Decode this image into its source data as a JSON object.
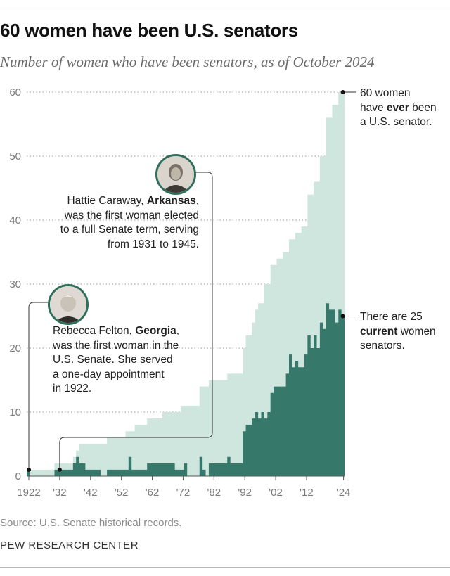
{
  "title": "60 women have been U.S. senators",
  "subtitle": "Number of women who have been senators, as of October 2024",
  "source": "Source: U.S. Senate historical records.",
  "brand": "PEW RESEARCH CENTER",
  "colors": {
    "ever": "#cfe6df",
    "current": "#36796a",
    "accent": "#2f6e5c"
  },
  "annotations": {
    "ever": {
      "line1": "60 women",
      "line2_pre": "have ",
      "line2_bold": "ever",
      "line2_post": " been",
      "line3": "a U.S. senator."
    },
    "current": {
      "line1": "There are 25",
      "line2_bold": "current",
      "line2_post": " women",
      "line3": "senators."
    },
    "caraway": {
      "name": "Hattie Caraway, ",
      "state": "Arkansas",
      "state_post": ",",
      "line2": "was the first woman elected",
      "line3": "to a full Senate term, serving",
      "line4": "from 1931 to 1945.",
      "portrait_icon": "portrait-hattie-caraway"
    },
    "felton": {
      "name": "Rebecca Felton, ",
      "state": "Georgia",
      "state_post": ",",
      "line2": "was the first woman in the",
      "line3": "U.S. Senate. She served",
      "line4": "a one-day appointment",
      "line5": "in 1922.",
      "portrait_icon": "portrait-rebecca-felton"
    }
  },
  "chart_data": {
    "type": "area",
    "title": "60 women have been U.S. senators",
    "subtitle": "Number of women who have been senators, as of October 2024",
    "xlabel": "",
    "ylabel": "",
    "ylim": [
      0,
      60
    ],
    "xlim": [
      1922,
      2024
    ],
    "yticks": [
      0,
      10,
      20,
      30,
      40,
      50,
      60
    ],
    "xtick_labels": [
      "1922",
      "'32",
      "'42",
      "'52",
      "'62",
      "'72",
      "'82",
      "'92",
      "'02",
      "'12",
      "'24"
    ],
    "xtick_years": [
      1922,
      1932,
      1942,
      1952,
      1962,
      1972,
      1982,
      1992,
      2002,
      2012,
      2024
    ],
    "grid": "horizontal-dotted",
    "series": [
      {
        "name": "ever",
        "step": true,
        "points": [
          [
            1922,
            1
          ],
          [
            1931,
            2
          ],
          [
            1937,
            3
          ],
          [
            1938,
            4
          ],
          [
            1939,
            5
          ],
          [
            1945,
            5
          ],
          [
            1948,
            6
          ],
          [
            1949,
            6
          ],
          [
            1954,
            7
          ],
          [
            1957,
            8
          ],
          [
            1961,
            9
          ],
          [
            1966,
            10
          ],
          [
            1972,
            11
          ],
          [
            1978,
            14
          ],
          [
            1981,
            15
          ],
          [
            1987,
            16
          ],
          [
            1992,
            20
          ],
          [
            1993,
            22
          ],
          [
            1995,
            24
          ],
          [
            1996,
            26
          ],
          [
            1997,
            27
          ],
          [
            1999,
            30
          ],
          [
            2001,
            33
          ],
          [
            2003,
            34
          ],
          [
            2005,
            35
          ],
          [
            2007,
            37
          ],
          [
            2009,
            38
          ],
          [
            2011,
            39
          ],
          [
            2013,
            44
          ],
          [
            2015,
            46
          ],
          [
            2017,
            50
          ],
          [
            2019,
            56
          ],
          [
            2021,
            58
          ],
          [
            2023,
            60
          ],
          [
            2024,
            60
          ]
        ]
      },
      {
        "name": "current",
        "step": true,
        "points": [
          [
            1922,
            1
          ],
          [
            1923,
            0
          ],
          [
            1931,
            1
          ],
          [
            1932,
            1
          ],
          [
            1937,
            2
          ],
          [
            1938,
            3
          ],
          [
            1939,
            2
          ],
          [
            1941,
            1
          ],
          [
            1945,
            1
          ],
          [
            1946,
            0
          ],
          [
            1947,
            0
          ],
          [
            1948,
            1
          ],
          [
            1954,
            1
          ],
          [
            1955,
            3
          ],
          [
            1956,
            1
          ],
          [
            1958,
            1
          ],
          [
            1959,
            1
          ],
          [
            1961,
            2
          ],
          [
            1962,
            2
          ],
          [
            1964,
            2
          ],
          [
            1966,
            2
          ],
          [
            1969,
            2
          ],
          [
            1970,
            1
          ],
          [
            1972,
            1
          ],
          [
            1973,
            2
          ],
          [
            1974,
            0
          ],
          [
            1978,
            3
          ],
          [
            1979,
            1
          ],
          [
            1980,
            0
          ],
          [
            1981,
            2
          ],
          [
            1987,
            3
          ],
          [
            1988,
            2
          ],
          [
            1990,
            2
          ],
          [
            1992,
            7
          ],
          [
            1993,
            8
          ],
          [
            1995,
            9
          ],
          [
            1996,
            10
          ],
          [
            1997,
            9
          ],
          [
            1998,
            10
          ],
          [
            1999,
            9
          ],
          [
            2000,
            10
          ],
          [
            2001,
            13
          ],
          [
            2002,
            14
          ],
          [
            2005,
            14
          ],
          [
            2006,
            16
          ],
          [
            2007,
            19
          ],
          [
            2008,
            17
          ],
          [
            2009,
            18
          ],
          [
            2010,
            17
          ],
          [
            2011,
            17
          ],
          [
            2012,
            19
          ],
          [
            2013,
            22
          ],
          [
            2014,
            20
          ],
          [
            2015,
            22
          ],
          [
            2016,
            20
          ],
          [
            2017,
            24
          ],
          [
            2018,
            23
          ],
          [
            2019,
            27
          ],
          [
            2020,
            26
          ],
          [
            2021,
            26
          ],
          [
            2022,
            24
          ],
          [
            2023,
            26
          ],
          [
            2024,
            25
          ]
        ]
      }
    ],
    "callouts": [
      {
        "year": 2024,
        "value": 60,
        "label": "60 women have ever been a U.S. senator."
      },
      {
        "year": 2024,
        "value": 25,
        "label": "There are 25 current women senators."
      },
      {
        "year": 1931,
        "value": 1,
        "label": "Hattie Caraway, Arkansas"
      },
      {
        "year": 1922,
        "value": 1,
        "label": "Rebecca Felton, Georgia"
      }
    ]
  }
}
